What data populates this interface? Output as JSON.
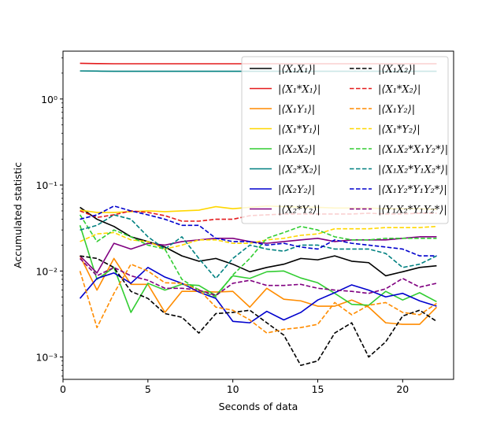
{
  "chart_data": {
    "type": "line",
    "title": "",
    "xlabel": "Seconds of data",
    "ylabel": "Accumulated statistic",
    "xlim": [
      0,
      23
    ],
    "ylim": [
      0.00055,
      3.6
    ],
    "yscale": "log",
    "grid": false,
    "legend_position": "top-right",
    "x_ticks": [
      {
        "value": 0,
        "label": "0"
      },
      {
        "value": 5,
        "label": "5"
      },
      {
        "value": 10,
        "label": "10"
      },
      {
        "value": 15,
        "label": "15"
      },
      {
        "value": 20,
        "label": "20"
      }
    ],
    "y_ticks": [
      {
        "value": 0.001,
        "label": "10⁻³"
      },
      {
        "value": 0.01,
        "label": "10⁻²"
      },
      {
        "value": 0.1,
        "label": "10⁻¹"
      },
      {
        "value": 1,
        "label": "10⁰"
      }
    ],
    "x": [
      1,
      2,
      3,
      4,
      5,
      6,
      7,
      8,
      9,
      10,
      11,
      12,
      13,
      14,
      15,
      16,
      17,
      18,
      19,
      20,
      21,
      22
    ],
    "series": [
      {
        "name": "|⟨X₁X₁⟩|",
        "color": "#000000",
        "dashed": false,
        "values": [
          0.055,
          0.04,
          0.033,
          0.025,
          0.022,
          0.019,
          0.015,
          0.013,
          0.014,
          0.012,
          0.0098,
          0.011,
          0.012,
          0.014,
          0.0135,
          0.015,
          0.013,
          0.0125,
          0.0088,
          0.0098,
          0.011,
          0.0115
        ]
      },
      {
        "name": "|⟨X₁*X₁⟩|",
        "color": "#e41a1c",
        "dashed": false,
        "values": [
          2.6,
          2.58,
          2.57,
          2.57,
          2.57,
          2.57,
          2.57,
          2.57,
          2.57,
          2.57,
          2.57,
          2.57,
          2.57,
          2.57,
          2.57,
          2.57,
          2.57,
          2.57,
          2.57,
          2.57,
          2.57,
          2.57
        ]
      },
      {
        "name": "|⟨X₁Y₁⟩|",
        "color": "#ff8c00",
        "dashed": false,
        "values": [
          0.015,
          0.006,
          0.014,
          0.007,
          0.007,
          0.0033,
          0.0058,
          0.0058,
          0.0057,
          0.0058,
          0.0038,
          0.0063,
          0.0047,
          0.0045,
          0.0039,
          0.0039,
          0.0046,
          0.0038,
          0.0025,
          0.0024,
          0.0024,
          0.0038
        ]
      },
      {
        "name": "|⟨X₁*Y₁⟩|",
        "color": "#ffd700",
        "dashed": false,
        "values": [
          0.051,
          0.048,
          0.048,
          0.049,
          0.05,
          0.049,
          0.05,
          0.051,
          0.056,
          0.053,
          0.055,
          0.057,
          0.056,
          0.055,
          0.055,
          0.054,
          0.054,
          0.054,
          0.053,
          0.053,
          0.053,
          0.052
        ]
      },
      {
        "name": "|⟨X₂X₂⟩|",
        "color": "#32cd32",
        "dashed": false,
        "values": [
          0.034,
          0.008,
          0.011,
          0.0033,
          0.0072,
          0.006,
          0.007,
          0.0068,
          0.0052,
          0.0088,
          0.0082,
          0.0098,
          0.01,
          0.0083,
          0.0073,
          0.0055,
          0.0041,
          0.004,
          0.0058,
          0.0046,
          0.0056,
          0.0044
        ]
      },
      {
        "name": "|⟨X₂*X₂⟩|",
        "color": "#008080",
        "dashed": false,
        "values": [
          2.12,
          2.11,
          2.1,
          2.1,
          2.1,
          2.1,
          2.1,
          2.1,
          2.1,
          2.1,
          2.1,
          2.1,
          2.1,
          2.1,
          2.1,
          2.1,
          2.1,
          2.1,
          2.1,
          2.1,
          2.1,
          2.1
        ]
      },
      {
        "name": "|⟨X₂Y₂⟩|",
        "color": "#0000cd",
        "dashed": false,
        "values": [
          0.0048,
          0.0082,
          0.0095,
          0.0072,
          0.011,
          0.0085,
          0.0072,
          0.0057,
          0.0048,
          0.0026,
          0.0025,
          0.0034,
          0.0027,
          0.0033,
          0.0046,
          0.0056,
          0.0069,
          0.006,
          0.005,
          0.0055,
          0.0045,
          0.0039
        ]
      },
      {
        "name": "|⟨X₂*Y₂⟩|",
        "color": "#800080",
        "dashed": false,
        "values": [
          0.015,
          0.0095,
          0.021,
          0.018,
          0.021,
          0.02,
          0.022,
          0.023,
          0.024,
          0.024,
          0.022,
          0.021,
          0.022,
          0.023,
          0.024,
          0.022,
          0.023,
          0.023,
          0.023,
          0.024,
          0.025,
          0.025
        ]
      },
      {
        "name": "|⟨X₁X₂⟩|",
        "color": "#000000",
        "dashed": true,
        "values": [
          0.015,
          0.014,
          0.011,
          0.0058,
          0.0048,
          0.0032,
          0.0029,
          0.0019,
          0.0032,
          0.0033,
          0.0035,
          0.0025,
          0.0018,
          0.0008,
          0.0009,
          0.0019,
          0.0025,
          0.001,
          0.0015,
          0.003,
          0.0035,
          0.0026
        ]
      },
      {
        "name": "|⟨X₁*X₂⟩|",
        "color": "#e41a1c",
        "dashed": true,
        "values": [
          0.05,
          0.042,
          0.045,
          0.05,
          0.048,
          0.044,
          0.038,
          0.038,
          0.04,
          0.04,
          0.044,
          0.045,
          0.046,
          0.046,
          0.046,
          0.046,
          0.046,
          0.047,
          0.046,
          0.046,
          0.047,
          0.047
        ]
      },
      {
        "name": "|⟨X₁Y₂⟩|",
        "color": "#ff8c00",
        "dashed": true,
        "values": [
          0.01,
          0.0022,
          0.0055,
          0.012,
          0.01,
          0.0073,
          0.0072,
          0.0061,
          0.0038,
          0.0035,
          0.0027,
          0.0019,
          0.0021,
          0.0022,
          0.0024,
          0.0043,
          0.0031,
          0.004,
          0.0043,
          0.0033,
          0.0031,
          0.0042
        ]
      },
      {
        "name": "|⟨X₁*Y₂⟩|",
        "color": "#ffd700",
        "dashed": true,
        "values": [
          0.022,
          0.027,
          0.028,
          0.023,
          0.022,
          0.018,
          0.02,
          0.023,
          0.023,
          0.021,
          0.021,
          0.023,
          0.024,
          0.026,
          0.027,
          0.031,
          0.031,
          0.031,
          0.032,
          0.032,
          0.032,
          0.033
        ]
      },
      {
        "name": "|⟨X₁X₂*X₁Y₂*⟩|",
        "color": "#32cd32",
        "dashed": true,
        "values": [
          0.045,
          0.022,
          0.03,
          0.025,
          0.02,
          0.018,
          0.008,
          0.006,
          0.005,
          0.009,
          0.014,
          0.024,
          0.028,
          0.033,
          0.03,
          0.025,
          0.023,
          0.023,
          0.024,
          0.024,
          0.024,
          0.024
        ]
      },
      {
        "name": "|⟨X₁X₂*Y₁X₂*⟩|",
        "color": "#008080",
        "dashed": true,
        "values": [
          0.03,
          0.034,
          0.045,
          0.04,
          0.025,
          0.018,
          0.025,
          0.014,
          0.0082,
          0.014,
          0.02,
          0.018,
          0.017,
          0.02,
          0.02,
          0.018,
          0.018,
          0.018,
          0.016,
          0.011,
          0.012,
          0.015
        ]
      },
      {
        "name": "|⟨X₁Y₂*Y₁Y₂*⟩|",
        "color": "#0000cd",
        "dashed": true,
        "values": [
          0.04,
          0.045,
          0.057,
          0.05,
          0.045,
          0.04,
          0.034,
          0.034,
          0.024,
          0.022,
          0.022,
          0.02,
          0.021,
          0.019,
          0.018,
          0.023,
          0.021,
          0.02,
          0.019,
          0.018,
          0.015,
          0.015
        ]
      },
      {
        "name": "|⟨Y₁X₂*Y₁Y₂*⟩|",
        "color": "#800080",
        "dashed": true,
        "values": [
          0.014,
          0.0088,
          0.011,
          0.0088,
          0.0078,
          0.0063,
          0.0063,
          0.006,
          0.0052,
          0.0072,
          0.0078,
          0.0068,
          0.0068,
          0.007,
          0.0063,
          0.006,
          0.0058,
          0.0055,
          0.0062,
          0.0082,
          0.0065,
          0.0072
        ]
      }
    ]
  }
}
